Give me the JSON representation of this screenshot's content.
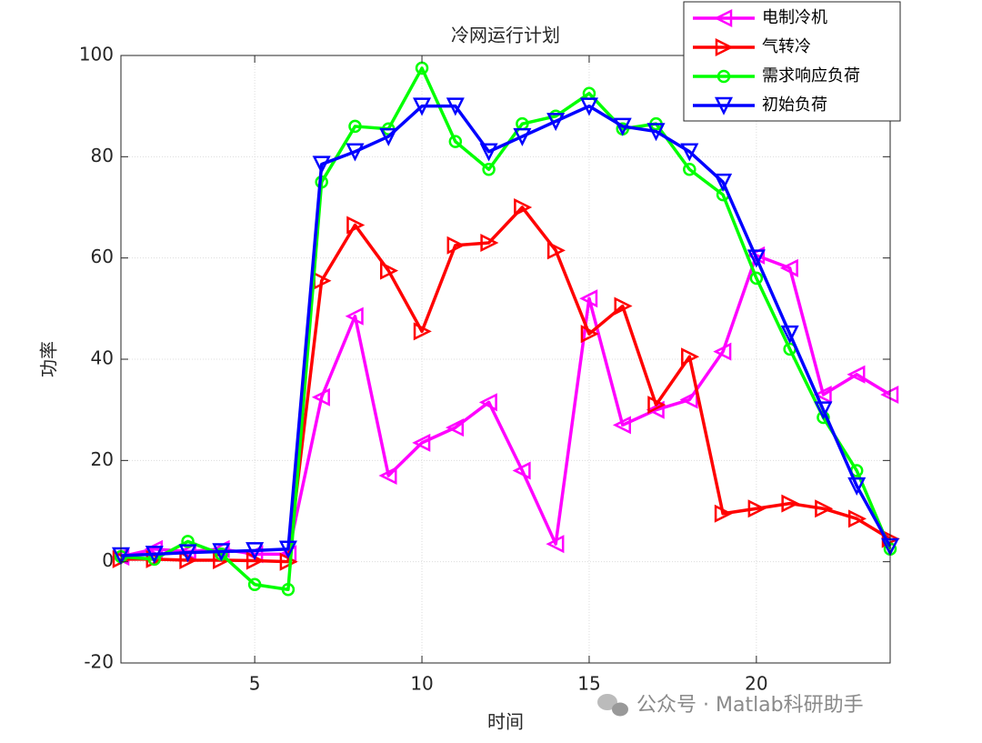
{
  "chart_data": {
    "type": "line",
    "title": "冷网运行计划",
    "xlabel": "时间",
    "ylabel": "功率",
    "x": [
      1,
      2,
      3,
      4,
      5,
      6,
      7,
      8,
      9,
      10,
      11,
      12,
      13,
      14,
      15,
      16,
      17,
      18,
      19,
      20,
      21,
      22,
      23,
      24
    ],
    "series": [
      {
        "name": "电制冷机",
        "color": "#ff00ff",
        "marker": "<",
        "values": [
          1,
          2.5,
          2,
          2.5,
          1.5,
          1.5,
          32.5,
          48.5,
          17,
          23.5,
          26.5,
          31.5,
          18,
          3.5,
          52,
          27,
          30,
          32,
          41.5,
          60.5,
          58,
          33,
          37,
          33
        ]
      },
      {
        "name": "气转冷",
        "color": "#ff0000",
        "marker": ">",
        "values": [
          0.5,
          0.5,
          0.3,
          0.3,
          0.2,
          0,
          55.5,
          66.5,
          57.5,
          45.5,
          62.5,
          63,
          70,
          61.5,
          45,
          50.5,
          31,
          40.5,
          9.5,
          10.5,
          11.5,
          10.5,
          8.5,
          4.5
        ]
      },
      {
        "name": "需求响应负荷",
        "color": "#00ff00",
        "marker": "o",
        "values": [
          1,
          0.5,
          4,
          1.5,
          -4.5,
          -5.5,
          75,
          86,
          85.5,
          97.5,
          83,
          77.5,
          86.5,
          88,
          92.5,
          85.5,
          86.5,
          77.5,
          72.5,
          56,
          42,
          28.5,
          18,
          2.5
        ]
      },
      {
        "name": "初始负荷",
        "color": "#0000ff",
        "marker": "v",
        "values": [
          1.2,
          1.5,
          1.8,
          2,
          2.2,
          2.5,
          78.5,
          81,
          84,
          90,
          90,
          81,
          84,
          87,
          90,
          86,
          85,
          81,
          75,
          60,
          45,
          30,
          15,
          3
        ]
      }
    ],
    "xlim": [
      1,
      24
    ],
    "xticks": [
      5,
      10,
      15,
      20
    ],
    "ylim": [
      -20,
      100
    ],
    "yticks": [
      -20,
      0,
      20,
      40,
      60,
      80,
      100
    ],
    "grid": true,
    "legend": "northeast",
    "watermark": "公众号 · Matlab科研助手"
  }
}
